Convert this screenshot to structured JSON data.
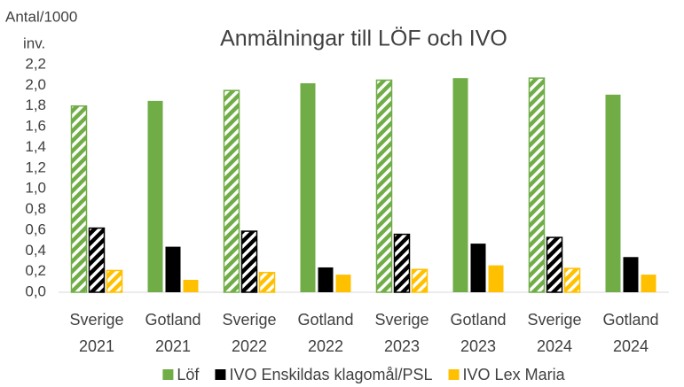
{
  "chart_data": {
    "type": "bar",
    "title": "Anmälningar till LÖF och IVO",
    "ylabel": [
      "Antal/1000",
      "inv."
    ],
    "categories": [
      [
        "Sverige",
        "2021"
      ],
      [
        "Gotland",
        "2021"
      ],
      [
        "Sverige",
        "2022"
      ],
      [
        "Gotland",
        "2022"
      ],
      [
        "Sverige",
        "2023"
      ],
      [
        "Gotland",
        "2023"
      ],
      [
        "Sverige",
        "2024"
      ],
      [
        "Gotland",
        "2024"
      ]
    ],
    "hatch": [
      true,
      false,
      true,
      false,
      true,
      false,
      true,
      false
    ],
    "series": [
      {
        "name": "Löf",
        "color": "#70ad47",
        "values": [
          1.8,
          1.85,
          1.95,
          2.02,
          2.05,
          2.07,
          2.07,
          1.91
        ]
      },
      {
        "name": "IVO Enskildas klagomål/PSL",
        "color": "#000000",
        "values": [
          0.62,
          0.44,
          0.59,
          0.24,
          0.56,
          0.47,
          0.53,
          0.34
        ]
      },
      {
        "name": "IVO Lex Maria",
        "color": "#ffc000",
        "values": [
          0.21,
          0.12,
          0.19,
          0.17,
          0.22,
          0.26,
          0.23,
          0.17
        ]
      }
    ],
    "ylim": [
      0,
      2.2
    ],
    "yticks": [
      {
        "value": 0,
        "label": "0,0"
      },
      {
        "value": 0.2,
        "label": "0,2"
      },
      {
        "value": 0.4,
        "label": "0,4"
      },
      {
        "value": 0.6,
        "label": "0,6"
      },
      {
        "value": 0.8,
        "label": "0,8"
      },
      {
        "value": 1.0,
        "label": "1,0"
      },
      {
        "value": 1.2,
        "label": "1,2"
      },
      {
        "value": 1.4,
        "label": "1,4"
      },
      {
        "value": 1.6,
        "label": "1,6"
      },
      {
        "value": 1.8,
        "label": "1,8"
      },
      {
        "value": 2.0,
        "label": "2,0"
      },
      {
        "value": 2.2,
        "label": "2,2"
      }
    ],
    "grid": false,
    "legend": "bottom"
  }
}
